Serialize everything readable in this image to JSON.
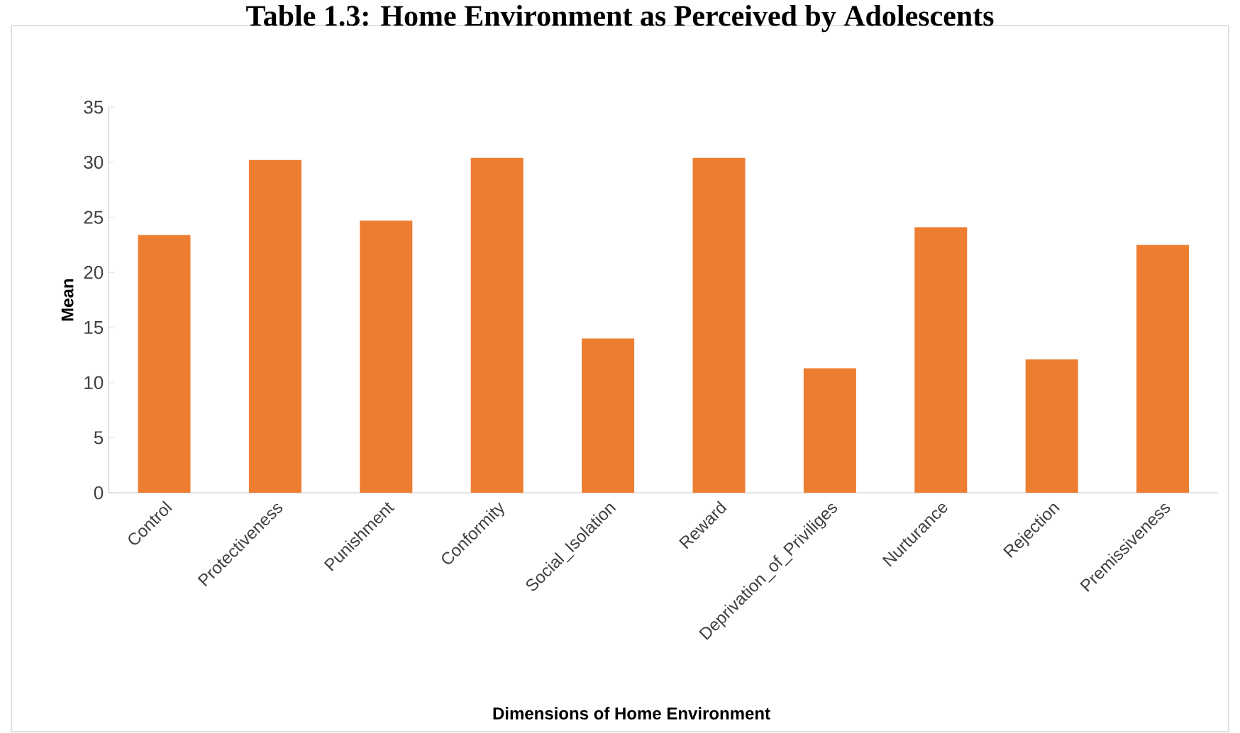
{
  "chart_data": {
    "type": "bar",
    "title": "Table 1.3: Home Environment as Perceived by Adolescents",
    "xlabel": "Dimensions of Home Environment",
    "ylabel": "Mean",
    "categories": [
      "Control",
      "Protectiveness",
      "Punishment",
      "Conformity",
      "Social_Isolation",
      "Reward",
      "Deprivation_of_Priviliges",
      "Nurturance",
      "Rejection",
      "Premissiveness"
    ],
    "values": [
      23.4,
      30.2,
      24.7,
      30.4,
      14.0,
      30.4,
      11.3,
      24.1,
      12.1,
      22.5
    ],
    "color": "#ed7d31",
    "ylim": [
      0,
      35
    ],
    "yticks": [
      0,
      5,
      10,
      15,
      20,
      25,
      30,
      35
    ],
    "grid": false
  }
}
